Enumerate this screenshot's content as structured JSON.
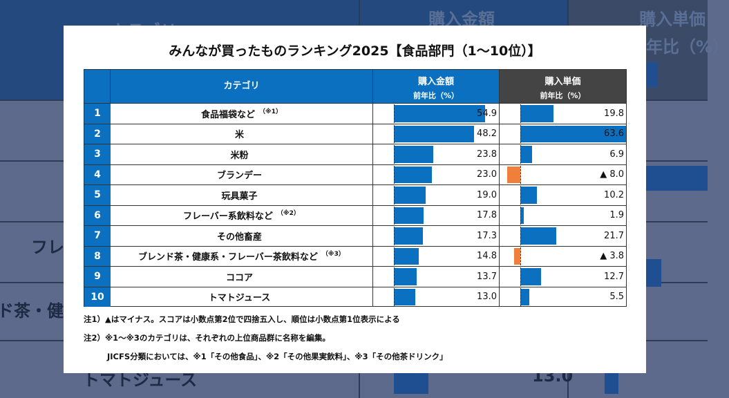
{
  "background": {
    "fragments": [
      "カテゴリ",
      "購入金額",
      "購入単価",
      "年比（%）",
      "フレ",
      "ド茶・健",
      "トマトジュース",
      "13.0"
    ]
  },
  "title": "みんなが買ったものランキング2025【食品部門（1～10位）】",
  "colors": {
    "header_blue": "#0b70bf",
    "header_gray": "#444444",
    "positive": "#0b70bf",
    "negative": "#f07f3c"
  },
  "header": {
    "category": "カテゴリ",
    "amount": "購入金額",
    "unit_price": "購入単価",
    "yoy": "前年比（%）"
  },
  "chart_data": {
    "type": "bar",
    "orientation": "horizontal",
    "categories": [
      "食品福袋など",
      "米",
      "米粉",
      "ブランデー",
      "玩具菓子",
      "フレーバー系飲料など",
      "その他畜産",
      "ブレンド茶・健康系・フレーバー茶飲料など",
      "ココア",
      "トマトジュース"
    ],
    "ranks": [
      "1",
      "2",
      "3",
      "4",
      "5",
      "6",
      "7",
      "8",
      "9",
      "10"
    ],
    "footnote_marks": [
      "（※1）",
      "",
      "",
      "",
      "",
      "（※2）",
      "",
      "（※3）",
      "",
      ""
    ],
    "series": [
      {
        "name": "購入金額 前年比（%）",
        "values": [
          54.9,
          48.2,
          23.8,
          23.0,
          19.0,
          17.8,
          17.3,
          14.8,
          13.7,
          13.0
        ],
        "labels": [
          "54.9",
          "48.2",
          "23.8",
          "23.0",
          "19.0",
          "17.8",
          "17.3",
          "14.8",
          "13.7",
          "13.0"
        ]
      },
      {
        "name": "購入単価 前年比（%）",
        "values": [
          19.8,
          63.6,
          6.9,
          -8.0,
          10.2,
          1.9,
          21.7,
          -3.8,
          12.7,
          5.5
        ],
        "labels": [
          "19.8",
          "63.6",
          "6.9",
          "▲ 8.0",
          "10.2",
          "1.9",
          "21.7",
          "▲ 3.8",
          "12.7",
          "5.5"
        ]
      }
    ]
  },
  "notes": [
    "注1）▲はマイナス。スコアは小数点第2位で四捨五入し、順位は小数点第1位表示による",
    "注2）※1～※3のカテゴリは、それぞれの上位商品群に名称を編集。",
    "JICFS分類においては、※1「その他食品」、※2「その他果実飲料」、※3「その他茶ドリンク」"
  ]
}
